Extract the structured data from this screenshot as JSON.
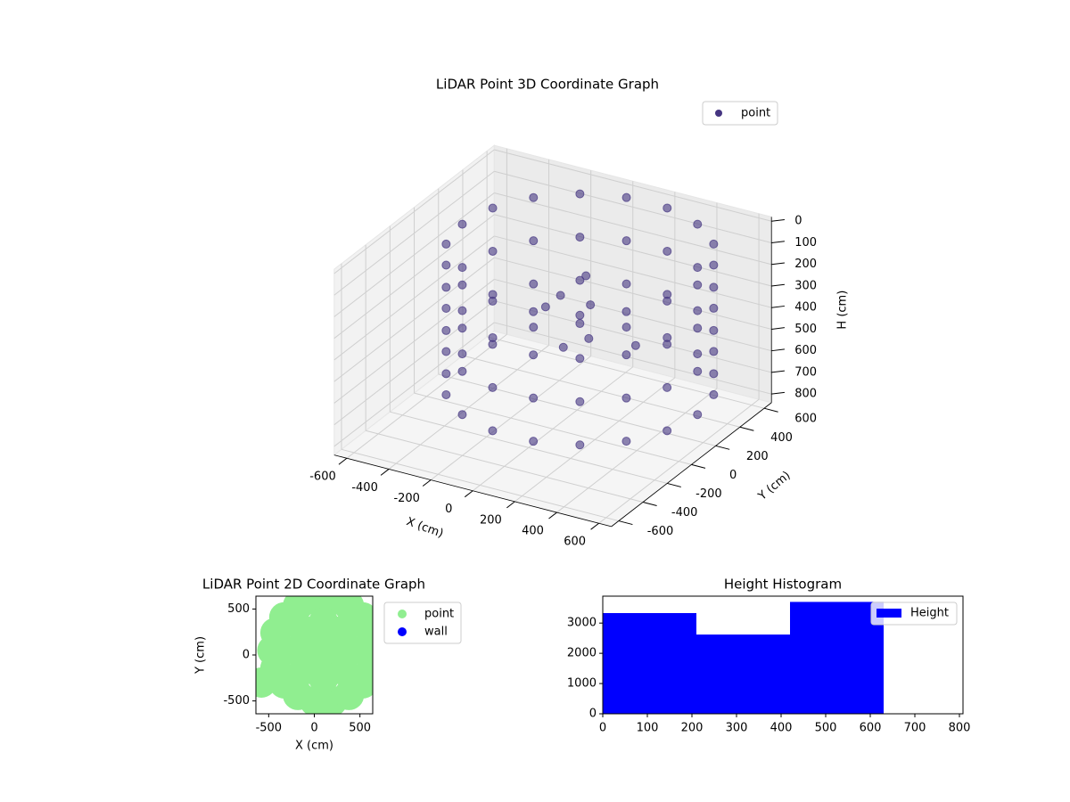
{
  "chart_data": [
    {
      "type": "scatter3d",
      "title": "LiDAR Point 3D Coordinate Graph",
      "x_label": "X (cm)",
      "y_label": "Y (cm)",
      "z_label": "H (cm)",
      "xlim": [
        -660,
        660
      ],
      "ylim": [
        -660,
        660
      ],
      "zlim": [
        840,
        -20
      ],
      "xticks": [
        -600,
        -400,
        -200,
        0,
        200,
        400,
        600
      ],
      "yticks": [
        -600,
        -400,
        -200,
        0,
        200,
        400,
        600
      ],
      "zticks": [
        0,
        100,
        200,
        300,
        400,
        500,
        600,
        700,
        800
      ],
      "legend": "upper right",
      "series": [
        {
          "name": "point",
          "color": "#453581",
          "x": [
            660,
            626,
            529,
            380,
            197,
            3,
            -180,
            -329,
            -426,
            -460,
            -426,
            -329,
            -180,
            3,
            197,
            380,
            529,
            626,
            660,
            626,
            529,
            380,
            197,
            3,
            -180,
            -329,
            -426,
            -460,
            -426,
            -329,
            -180,
            3,
            197,
            380,
            529,
            626,
            660,
            626,
            529,
            380,
            197,
            3,
            -180,
            -329,
            -426,
            -460,
            -426,
            -329,
            -180,
            3,
            197,
            380,
            529,
            626,
            660,
            626,
            529,
            380,
            197,
            3,
            -180,
            -329,
            -426,
            -460,
            -426,
            -329,
            -180,
            3,
            197,
            380,
            529,
            626,
            100,
            150,
            -50,
            200,
            50,
            -150,
            250
          ],
          "y": [
            50,
            242,
            410,
            535,
            602,
            602,
            535,
            410,
            242,
            50,
            -142,
            -310,
            -435,
            -502,
            -502,
            -435,
            -310,
            -142,
            50,
            242,
            410,
            535,
            602,
            602,
            535,
            410,
            242,
            50,
            -142,
            -310,
            -435,
            -502,
            -502,
            -435,
            -310,
            -142,
            50,
            242,
            410,
            535,
            602,
            602,
            535,
            410,
            242,
            50,
            -142,
            -310,
            -435,
            -502,
            -502,
            -435,
            -310,
            -142,
            50,
            242,
            410,
            535,
            602,
            602,
            535,
            410,
            242,
            50,
            -142,
            -310,
            -435,
            -502,
            -502,
            -435,
            -310,
            -142,
            100,
            50,
            150,
            -50,
            0,
            200,
            250
          ],
          "h": [
            30,
            30,
            30,
            30,
            30,
            30,
            30,
            30,
            30,
            30,
            30,
            30,
            30,
            30,
            30,
            30,
            30,
            30,
            230,
            230,
            230,
            230,
            230,
            230,
            230,
            230,
            230,
            230,
            230,
            230,
            230,
            230,
            230,
            230,
            230,
            230,
            430,
            430,
            430,
            430,
            430,
            430,
            430,
            430,
            430,
            430,
            430,
            430,
            430,
            430,
            430,
            430,
            430,
            430,
            630,
            630,
            630,
            630,
            630,
            630,
            630,
            630,
            630,
            630,
            630,
            630,
            630,
            630,
            630,
            630,
            630,
            630,
            150,
            250,
            300,
            350,
            450,
            400,
            500
          ]
        }
      ]
    },
    {
      "type": "scatter",
      "title": "LiDAR Point 2D Coordinate Graph",
      "x_label": "X (cm)",
      "y_label": "Y (cm)",
      "xlim": [
        -640,
        640
      ],
      "ylim": [
        -640,
        640
      ],
      "xticks": [
        -500,
        0,
        500
      ],
      "yticks": [
        -500,
        0,
        500
      ],
      "legend": "outside upper right",
      "series": [
        {
          "name": "point",
          "color": "#90ee90",
          "x": [
            660,
            626,
            529,
            380,
            197,
            3,
            -180,
            -329,
            -426,
            -460,
            -426,
            -329,
            -180,
            3,
            197,
            380,
            529,
            626,
            400,
            312,
            100,
            -112,
            -200,
            -112,
            100,
            312,
            100,
            -580
          ],
          "y": [
            50,
            242,
            410,
            535,
            602,
            602,
            535,
            410,
            242,
            50,
            -142,
            -310,
            -435,
            -502,
            -502,
            -435,
            -310,
            -142,
            50,
            262,
            350,
            262,
            50,
            -162,
            -250,
            -162,
            50,
            -300
          ]
        },
        {
          "name": "wall",
          "color": "#0000ff",
          "x": [],
          "y": []
        }
      ]
    },
    {
      "type": "histogram",
      "title": "Height Histogram",
      "bins": [
        0,
        210,
        420,
        630
      ],
      "xlim": [
        0,
        808
      ],
      "ylim": [
        0,
        3890
      ],
      "xticks": [
        0,
        100,
        200,
        300,
        400,
        500,
        600,
        700,
        800
      ],
      "yticks": [
        0,
        1000,
        2000,
        3000
      ],
      "legend": "upper right",
      "series": [
        {
          "name": "Height",
          "color": "#0000ff",
          "values": [
            3330,
            2620,
            3700
          ]
        }
      ]
    }
  ]
}
